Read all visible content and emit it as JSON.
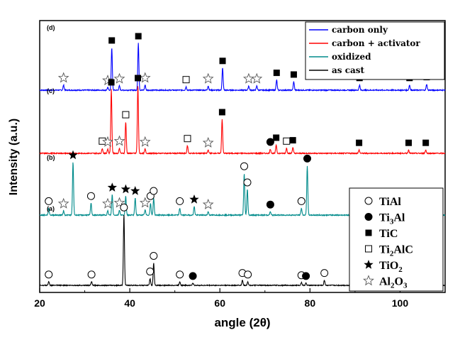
{
  "chart_data": {
    "type": "line",
    "xlabel": "angle (2θ)",
    "ylabel": "Intensity (a.u.)",
    "xlim": [
      20,
      110
    ],
    "x_ticks": [
      20,
      40,
      60,
      80,
      100
    ],
    "y_ticks_visible": false,
    "colors": {
      "carbon_only": "#0000ff",
      "carbon_activator": "#ff0000",
      "oxidized": "#008b8b",
      "as_cast": "#000000"
    },
    "series": [
      {
        "name": "carbon only",
        "panel": "(d)",
        "key": "carbon_only",
        "peaks": [
          {
            "x": 25.3,
            "h": 0.06,
            "m": "al2o3"
          },
          {
            "x": 35.1,
            "h": 0.03,
            "m": "al2o3"
          },
          {
            "x": 36.0,
            "h": 0.5,
            "m": "tic"
          },
          {
            "x": 37.7,
            "h": 0.05,
            "m": "al2o3"
          },
          {
            "x": 41.9,
            "h": 0.55,
            "m": "tic"
          },
          {
            "x": 43.4,
            "h": 0.06,
            "m": "al2o3"
          },
          {
            "x": 52.5,
            "h": 0.04,
            "m": "ti2alc"
          },
          {
            "x": 57.4,
            "h": 0.05,
            "m": "al2o3"
          },
          {
            "x": 60.6,
            "h": 0.26,
            "m": "tic"
          },
          {
            "x": 66.4,
            "h": 0.05,
            "m": "al2o3"
          },
          {
            "x": 68.2,
            "h": 0.05,
            "m": "al2o3"
          },
          {
            "x": 72.6,
            "h": 0.12,
            "m": "tic"
          },
          {
            "x": 76.4,
            "h": 0.1,
            "m": "tic"
          },
          {
            "x": 91.0,
            "h": 0.06,
            "m": "tic"
          },
          {
            "x": 102.1,
            "h": 0.06,
            "m": "tic"
          },
          {
            "x": 105.9,
            "h": 0.07,
            "m": "tic"
          }
        ]
      },
      {
        "name": "carbon + activator",
        "panel": "(c)",
        "key": "carbon_activator",
        "peaks": [
          {
            "x": 33.9,
            "h": 0.06,
            "m": "ti2alc"
          },
          {
            "x": 35.1,
            "h": 0.05,
            "m": "al2o3"
          },
          {
            "x": 35.9,
            "h": 0.75,
            "m": "tic"
          },
          {
            "x": 37.7,
            "h": 0.06,
            "m": "al2o3"
          },
          {
            "x": 39.1,
            "h": 0.37,
            "m": "ti2alc"
          },
          {
            "x": 41.8,
            "h": 0.8,
            "m": "tic"
          },
          {
            "x": 43.4,
            "h": 0.05,
            "m": "al2o3"
          },
          {
            "x": 52.8,
            "h": 0.09,
            "m": "ti2alc"
          },
          {
            "x": 57.4,
            "h": 0.04,
            "m": "al2o3"
          },
          {
            "x": 60.5,
            "h": 0.4,
            "m": "tic"
          },
          {
            "x": 71.2,
            "h": 0.05,
            "m": "ti3al"
          },
          {
            "x": 72.5,
            "h": 0.1,
            "m": "tic"
          },
          {
            "x": 74.8,
            "h": 0.06,
            "m": "ti2alc"
          },
          {
            "x": 76.2,
            "h": 0.07,
            "m": "tic"
          },
          {
            "x": 90.9,
            "h": 0.04,
            "m": "tic"
          },
          {
            "x": 101.9,
            "h": 0.04,
            "m": "tic"
          },
          {
            "x": 105.7,
            "h": 0.04,
            "m": "tic"
          }
        ]
      },
      {
        "name": "oxidized",
        "panel": "(b)",
        "key": "oxidized",
        "peaks": [
          {
            "x": 22.0,
            "h": 0.08,
            "m": "tial"
          },
          {
            "x": 25.3,
            "h": 0.05,
            "m": "al2o3"
          },
          {
            "x": 27.4,
            "h": 0.62,
            "m": "tio2"
          },
          {
            "x": 31.4,
            "h": 0.14,
            "m": "tial"
          },
          {
            "x": 35.1,
            "h": 0.05,
            "m": "al2o3"
          },
          {
            "x": 36.1,
            "h": 0.24,
            "m": "tio2"
          },
          {
            "x": 37.7,
            "h": 0.06,
            "m": "al2o3"
          },
          {
            "x": 39.1,
            "h": 0.22,
            "m": "tio2"
          },
          {
            "x": 41.2,
            "h": 0.2,
            "m": "tio2"
          },
          {
            "x": 43.4,
            "h": 0.06,
            "m": "al2o3"
          },
          {
            "x": 44.6,
            "h": 0.14,
            "m": "tial"
          },
          {
            "x": 45.3,
            "h": 0.2,
            "m": "tial"
          },
          {
            "x": 51.1,
            "h": 0.08,
            "m": "tial"
          },
          {
            "x": 54.3,
            "h": 0.1,
            "m": "tio2"
          },
          {
            "x": 57.4,
            "h": 0.04,
            "m": "al2o3"
          },
          {
            "x": 65.4,
            "h": 0.49,
            "m": "tial"
          },
          {
            "x": 66.1,
            "h": 0.3,
            "m": "tial"
          },
          {
            "x": 71.2,
            "h": 0.04,
            "m": "ti3al"
          },
          {
            "x": 78.1,
            "h": 0.08,
            "m": "tial"
          },
          {
            "x": 79.4,
            "h": 0.58,
            "m": "ti3al"
          }
        ]
      },
      {
        "name": "as cast",
        "panel": "(a)",
        "key": "as_cast",
        "peaks": [
          {
            "x": 22.0,
            "h": 0.05,
            "m": "tial"
          },
          {
            "x": 31.5,
            "h": 0.05,
            "m": "tial"
          },
          {
            "x": 38.7,
            "h": 0.95,
            "m": "tial"
          },
          {
            "x": 44.5,
            "h": 0.09,
            "m": "tial"
          },
          {
            "x": 45.3,
            "h": 0.3,
            "m": "tial"
          },
          {
            "x": 51.1,
            "h": 0.05,
            "m": "tial"
          },
          {
            "x": 54.0,
            "h": 0.03,
            "m": "ti3al"
          },
          {
            "x": 65.0,
            "h": 0.07,
            "m": "tial"
          },
          {
            "x": 66.2,
            "h": 0.05,
            "m": "tial"
          },
          {
            "x": 78.1,
            "h": 0.04,
            "m": "tial"
          },
          {
            "x": 79.1,
            "h": 0.03,
            "m": "ti3al"
          },
          {
            "x": 83.2,
            "h": 0.07,
            "m": "tial"
          }
        ]
      }
    ],
    "legend": {
      "location": "top-right",
      "lines": [
        {
          "label": "carbon only",
          "key": "carbon_only"
        },
        {
          "label": "carbon + activator",
          "key": "carbon_activator"
        },
        {
          "label": "oxidized",
          "key": "oxidized"
        },
        {
          "label": "as cast",
          "key": "as_cast"
        }
      ]
    },
    "marker_legend": {
      "location": "bottom-right",
      "items": [
        {
          "symbol": "open-circle",
          "phase": "tial",
          "label": "TiAl"
        },
        {
          "symbol": "filled-circle",
          "phase": "ti3al",
          "label_main": "Ti",
          "label_sub": "3",
          "label_tail": "Al"
        },
        {
          "symbol": "filled-square",
          "phase": "tic",
          "label": "TiC"
        },
        {
          "symbol": "open-square",
          "phase": "ti2alc",
          "label_main": "Ti",
          "label_sub": "2",
          "label_tail": "AlC"
        },
        {
          "symbol": "filled-star",
          "phase": "tio2",
          "label_main": "TiO",
          "label_sub": "2",
          "label_tail": ""
        },
        {
          "symbol": "open-star",
          "phase": "al2o3",
          "label_main": "Al",
          "label_sub": "2",
          "label_tail": "O",
          "label_sub2": "3"
        }
      ]
    }
  }
}
